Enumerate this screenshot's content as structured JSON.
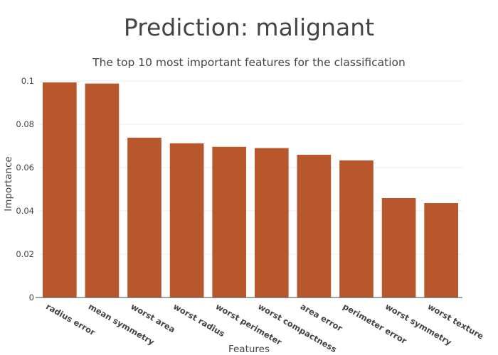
{
  "chart_data": {
    "type": "bar",
    "title": "Prediction: malignant",
    "subtitle": "The top 10 most important features for the classification",
    "xlabel": "Features",
    "ylabel": "Importance",
    "categories": [
      "radius error",
      "mean symmetry",
      "worst area",
      "worst radius",
      "worst perimeter",
      "worst compactness",
      "area error",
      "perimeter error",
      "worst symmetry",
      "worst texture"
    ],
    "values": [
      0.0993,
      0.0988,
      0.0738,
      0.0712,
      0.0696,
      0.069,
      0.0659,
      0.0633,
      0.0459,
      0.0436
    ],
    "ylim": [
      0,
      0.1
    ],
    "yticks": [
      0,
      0.02,
      0.04,
      0.06,
      0.08,
      0.1
    ],
    "ytick_labels": [
      "0",
      "0.02",
      "0.04",
      "0.06",
      "0.08",
      "0.1"
    ],
    "grid": true,
    "legend": "none",
    "bar_color": "#b8572b"
  }
}
